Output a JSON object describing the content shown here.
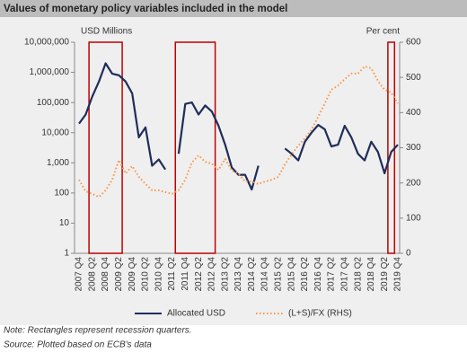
{
  "chart_data": {
    "type": "line",
    "title": "Values of monetary policy variables included in the model",
    "y_label": "USD Millions",
    "y2_label": "Per cent",
    "categories": [
      "2007 Q4",
      null,
      "2008 Q2",
      null,
      "2008 Q4",
      null,
      "2009 Q2",
      null,
      "2009 Q4",
      null,
      "2010 Q2",
      null,
      "2010 Q4",
      null,
      "2011 Q2",
      null,
      "2011 Q4",
      null,
      "2012 Q2",
      null,
      "2012 Q4",
      null,
      "2013 Q2",
      null,
      "2013 Q4",
      null,
      "2014 Q2",
      null,
      "2014 Q4",
      null,
      "2015 Q2",
      null,
      "2015 Q4",
      null,
      "2016 Q2",
      null,
      "2016 Q4",
      null,
      "2017 Q2",
      null,
      "2017 Q4",
      null,
      "2018 Q2",
      null,
      "2018 Q4",
      null,
      "2019 Q2",
      null,
      "2019 Q4"
    ],
    "series": [
      {
        "name": "Allocated USD",
        "color": "#1f2d5a",
        "axis": "y",
        "dash": false,
        "values": [
          20000,
          40000,
          160000,
          500000,
          2000000,
          900000,
          800000,
          500000,
          200000,
          7000,
          15000,
          800,
          1300,
          600,
          null,
          2000,
          90000,
          100000,
          40000,
          80000,
          50000,
          17000,
          4000,
          700,
          400,
          400,
          130,
          800,
          null,
          null,
          null,
          3000,
          2000,
          1200,
          5000,
          10000,
          18000,
          13000,
          3500,
          4000,
          17000,
          7000,
          2000,
          1200,
          5000,
          2300,
          450,
          2300,
          4000
        ]
      },
      {
        "name": "(L+S)/FX (RHS)",
        "color": "#f79646",
        "axis": "y2",
        "dash": true,
        "values": [
          209,
          176,
          169,
          160,
          179,
          209,
          265,
          227,
          248,
          217,
          197,
          179,
          179,
          174,
          169,
          179,
          209,
          258,
          278,
          260,
          255,
          237,
          268,
          235,
          227,
          204,
          204,
          197,
          204,
          209,
          217,
          253,
          281,
          306,
          327,
          352,
          388,
          426,
          465,
          477,
          495,
          511,
          511,
          531,
          526,
          490,
          465,
          457,
          426
        ]
      }
    ],
    "recessions": [
      [
        2,
        6
      ],
      [
        15,
        20
      ],
      [
        47,
        47
      ]
    ],
    "recession_color": "#c00000",
    "ylim": [
      1,
      10000000
    ],
    "log_scale": true,
    "yticks": [
      1,
      10,
      100,
      {
        "value": 1000,
        "label": "1,000"
      },
      {
        "value": 10000,
        "label": "10,000"
      },
      {
        "value": 100000,
        "label": "100,000"
      },
      {
        "value": 1000000,
        "label": "1,000,000"
      },
      {
        "value": 10000000,
        "label": "10,000,000"
      }
    ],
    "y2lim": [
      0,
      600
    ],
    "y2ticks": [
      0,
      100,
      200,
      300,
      400,
      500,
      600
    ],
    "notes": [
      "Note: Rectangles represent recession quarters.",
      "Source: Plotted based on ECB's data"
    ]
  }
}
